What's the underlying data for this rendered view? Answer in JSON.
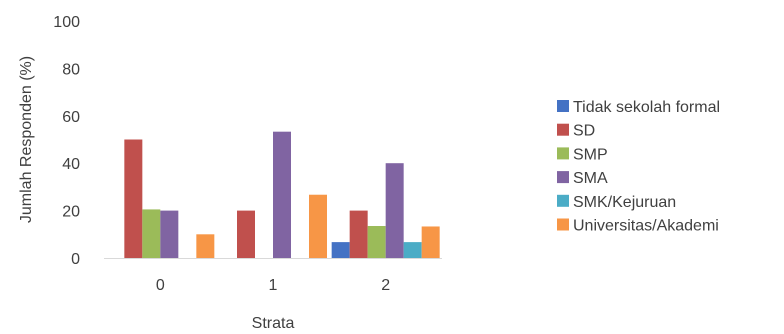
{
  "chart_data": {
    "type": "bar",
    "title": "",
    "xlabel": "Strata",
    "ylabel": "Jumlah Responden  (%)",
    "categories": [
      "0",
      "1",
      "2"
    ],
    "ylim": [
      0,
      100
    ],
    "yticks": [
      "0",
      "20",
      "40",
      "60",
      "80",
      "100"
    ],
    "grid": false,
    "legend_position": "right",
    "series": [
      {
        "name": "Tidak sekolah formal",
        "color": "#4472C4",
        "values": [
          0,
          0,
          6.7
        ]
      },
      {
        "name": "SD",
        "color": "#C0504D",
        "values": [
          50,
          20,
          20
        ]
      },
      {
        "name": "SMP",
        "color": "#9BBB59",
        "values": [
          20.5,
          0,
          13.5
        ]
      },
      {
        "name": "SMA",
        "color": "#8064A2",
        "values": [
          20,
          53.3,
          40
        ]
      },
      {
        "name": "SMK/Kejuruan",
        "color": "#4BACC6",
        "values": [
          0,
          0,
          6.7
        ]
      },
      {
        "name": "Universitas/Akademi",
        "color": "#F79646",
        "values": [
          10,
          26.7,
          13.3
        ]
      }
    ]
  }
}
